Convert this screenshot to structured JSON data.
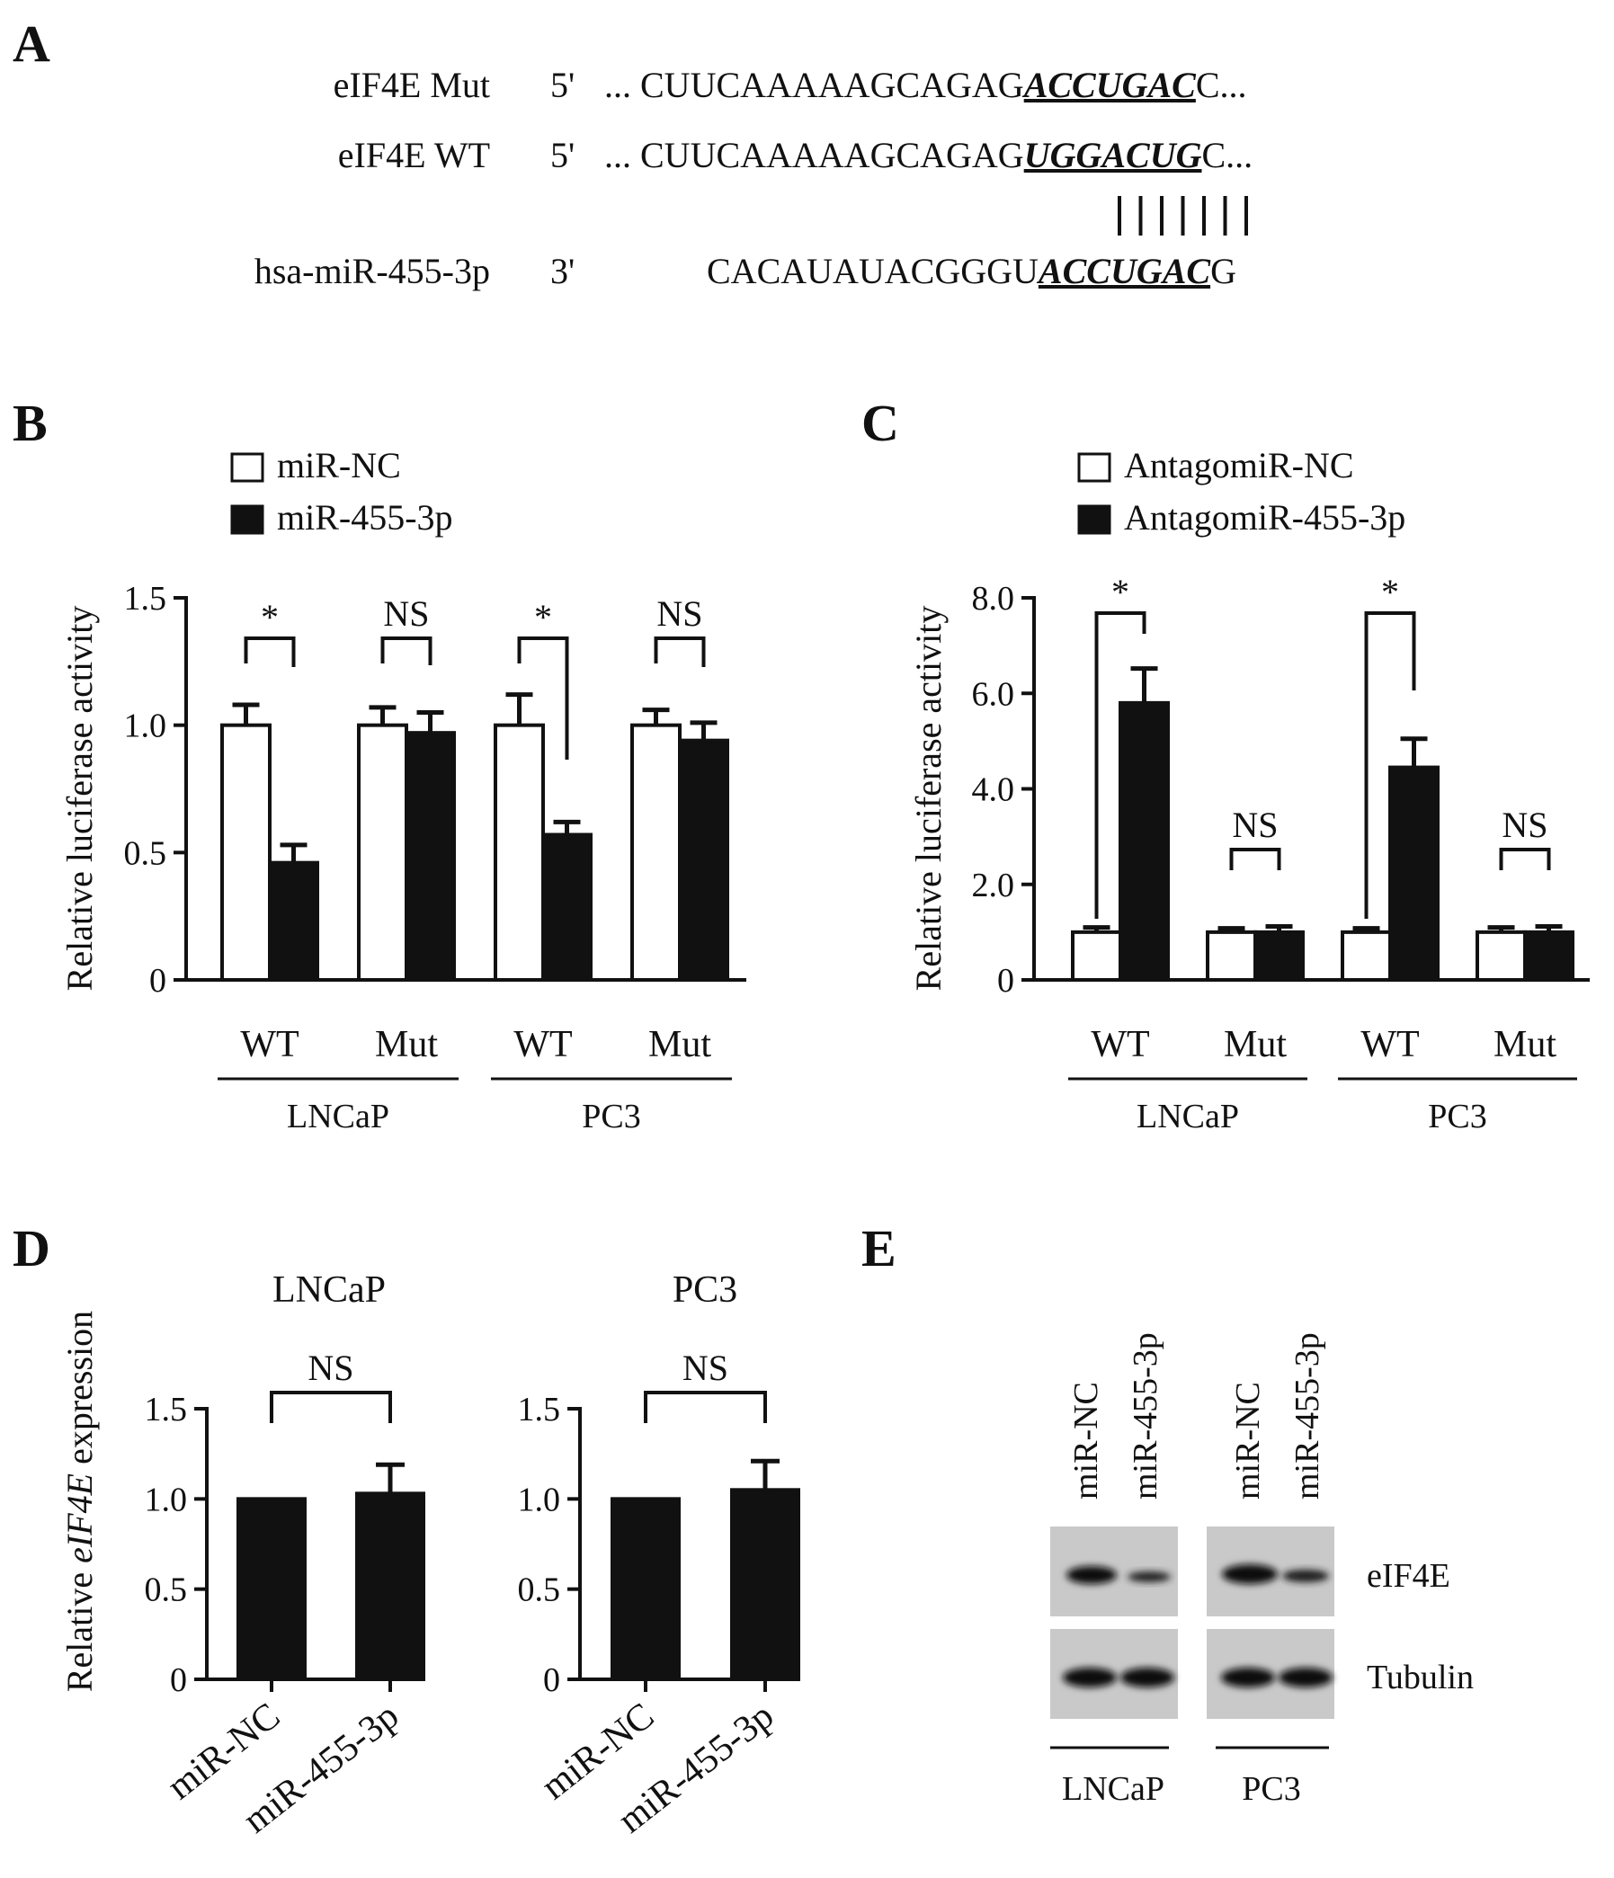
{
  "figure": {
    "panel_letters": [
      "A",
      "B",
      "C",
      "D",
      "E"
    ]
  },
  "panel_a": {
    "rows": [
      {
        "label": "eIF4E Mut",
        "end": "5'",
        "prefix": "... CUUCAAAAAGCAGAG",
        "site": "ACCUGAC",
        "suffix": "C..."
      },
      {
        "label": "eIF4E WT",
        "end": "5'",
        "prefix": "... CUUCAAAAAGCAGAG",
        "site": "UGGACUG",
        "suffix": "C..."
      },
      {
        "label": "hsa-miR-455-3p",
        "end": "3'",
        "prefix": "CACAUAUACGGGU",
        "site": "ACCUGAC",
        "suffix": "G"
      }
    ]
  },
  "chart_data": [
    {
      "panel": "B",
      "type": "bar",
      "ylabel": "Relative luciferase activity",
      "ylim": [
        0,
        1.5
      ],
      "yticks": [
        "0",
        "0.5",
        "1.0",
        "1.5"
      ],
      "categories": [
        "WT",
        "Mut",
        "WT",
        "Mut"
      ],
      "groups": [
        {
          "label": "LNCaP",
          "span": [
            0,
            1
          ]
        },
        {
          "label": "PC3",
          "span": [
            2,
            3
          ]
        }
      ],
      "series": [
        {
          "name": "miR-NC",
          "fill": "white",
          "values": [
            1.0,
            1.0,
            1.0,
            1.0
          ],
          "errors": [
            0.08,
            0.07,
            0.12,
            0.06
          ]
        },
        {
          "name": "miR-455-3p",
          "fill": "black",
          "values": [
            0.46,
            0.97,
            0.57,
            0.94
          ],
          "errors": [
            0.07,
            0.08,
            0.05,
            0.07
          ]
        }
      ],
      "annotations": [
        "*",
        "NS",
        "*",
        "NS"
      ],
      "legend": "top-left"
    },
    {
      "panel": "C",
      "type": "bar",
      "ylabel": "Relative luciferase activity",
      "ylim": [
        0,
        8.0
      ],
      "yticks": [
        "0",
        "2.0",
        "4.0",
        "6.0",
        "8.0"
      ],
      "categories": [
        "WT",
        "Mut",
        "WT",
        "Mut"
      ],
      "groups": [
        {
          "label": "LNCaP",
          "span": [
            0,
            1
          ]
        },
        {
          "label": "PC3",
          "span": [
            2,
            3
          ]
        }
      ],
      "series": [
        {
          "name": "AntagomiR-NC",
          "fill": "white",
          "values": [
            1.0,
            1.0,
            1.0,
            1.0
          ],
          "errors": [
            0.1,
            0.08,
            0.08,
            0.1
          ]
        },
        {
          "name": "AntagomiR-455-3p",
          "fill": "black",
          "values": [
            5.8,
            1.0,
            4.45,
            1.0
          ],
          "errors": [
            0.72,
            0.12,
            0.6,
            0.12
          ]
        }
      ],
      "annotations": [
        "*",
        "NS",
        "*",
        "NS"
      ],
      "legend": "top-left"
    },
    {
      "panel": "D",
      "type": "bar",
      "ylabel_prefix": "Relative ",
      "ylabel_gene": "eIF4E",
      "ylabel_suffix": " expression",
      "ylim": [
        0,
        1.5
      ],
      "yticks": [
        "0",
        "0.5",
        "1.0",
        "1.5"
      ],
      "subplots": [
        {
          "title": "LNCaP",
          "categories": [
            "miR-NC",
            "miR-455-3p"
          ],
          "values": [
            1.0,
            1.03
          ],
          "errors": [
            0.0,
            0.16
          ],
          "annotation": "NS"
        },
        {
          "title": "PC3",
          "categories": [
            "miR-NC",
            "miR-455-3p"
          ],
          "values": [
            1.0,
            1.05
          ],
          "errors": [
            0.0,
            0.16
          ],
          "annotation": "NS"
        }
      ]
    }
  ],
  "panel_e": {
    "lanes": [
      "miR-NC",
      "miR-455-3p",
      "miR-NC",
      "miR-455-3p"
    ],
    "bands": [
      "eIF4E",
      "Tubulin"
    ],
    "groups": [
      "LNCaP",
      "PC3"
    ]
  }
}
